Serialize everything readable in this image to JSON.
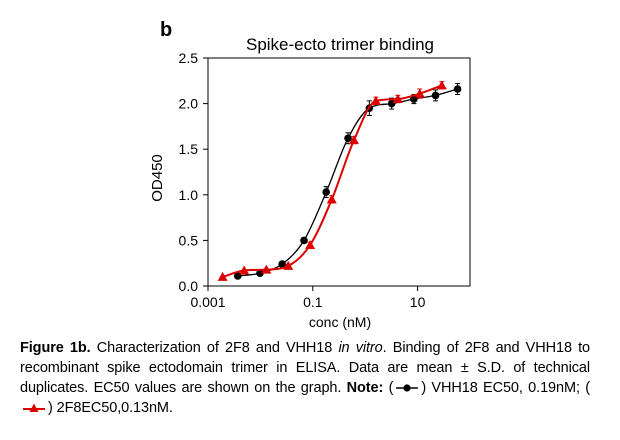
{
  "panel_label": "b",
  "chart_data": {
    "type": "line",
    "title": "Spike-ecto trimer binding",
    "xlabel": "conc (nM)",
    "ylabel": "OD450",
    "x_scale": "log",
    "xlim": [
      0.001,
      100
    ],
    "ylim": [
      0,
      2.5
    ],
    "x_ticks": [
      {
        "value": 0.001,
        "label": "0.001"
      },
      {
        "value": 0.1,
        "label": "0.1"
      },
      {
        "value": 10,
        "label": "10"
      }
    ],
    "y_ticks": [
      {
        "value": 0,
        "label": "0.0"
      },
      {
        "value": 0.5,
        "label": "0.5"
      },
      {
        "value": 1.0,
        "label": "1.0"
      },
      {
        "value": 1.5,
        "label": "1.5"
      },
      {
        "value": 2.0,
        "label": "2.0"
      },
      {
        "value": 2.5,
        "label": "2.5"
      }
    ],
    "grid": false,
    "series": [
      {
        "color": "#000000",
        "marker": "circle",
        "x": [
          0.0037,
          0.0098,
          0.026,
          0.068,
          0.18,
          0.47,
          1.2,
          3.2,
          8.5,
          22,
          58
        ],
        "y": [
          0.11,
          0.14,
          0.24,
          0.5,
          1.03,
          1.62,
          1.95,
          2.0,
          2.05,
          2.09,
          2.16
        ],
        "err": [
          0.01,
          0.01,
          0.02,
          0.03,
          0.06,
          0.06,
          0.08,
          0.06,
          0.05,
          0.06,
          0.06
        ]
      },
      {
        "color": "#dd0000",
        "marker": "triangle",
        "x": [
          0.0019,
          0.0049,
          0.013,
          0.034,
          0.089,
          0.23,
          0.61,
          1.6,
          4.2,
          11,
          29
        ],
        "y": [
          0.1,
          0.17,
          0.18,
          0.22,
          0.45,
          0.95,
          1.6,
          2.03,
          2.05,
          2.11,
          2.2
        ],
        "err": [
          0.01,
          0.01,
          0.01,
          0.02,
          0.03,
          0.04,
          0.04,
          0.04,
          0.04,
          0.05,
          0.04
        ]
      }
    ]
  },
  "caption": {
    "figure_label": "Figure 1b.",
    "text1": " Characterization of 2F8 and VHH18 ",
    "in_vitro": "in vitro",
    "text2": ". Binding of 2F8 and VHH18 to recombinant spike ectodomain trimer in ELISA. Data are mean ± S.D. of technical duplicates. EC50 values are shown on the graph. ",
    "note_label": "Note:",
    "text3": " (",
    "text4": ") VHH18 EC50, 0.19nM; (",
    "text5": ") 2F8EC50,0.13nM."
  }
}
